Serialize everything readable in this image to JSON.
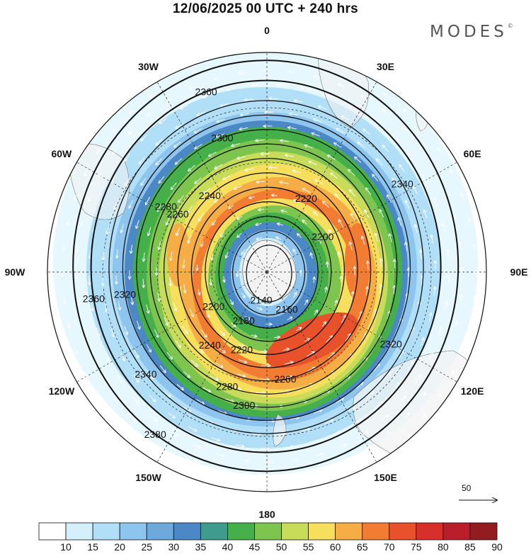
{
  "title": "12/06/2025  00 UTC  + 240 hrs",
  "brand": "MODES",
  "brand_mark": "©",
  "longitude_labels": [
    "0",
    "30E",
    "60E",
    "90E",
    "120E",
    "150E",
    "180",
    "150W",
    "120W",
    "90W",
    "60W",
    "30W"
  ],
  "reference_vector": "50",
  "colorbar": {
    "labels": [
      "10",
      "15",
      "20",
      "25",
      "30",
      "35",
      "40",
      "45",
      "50",
      "55",
      "60",
      "65",
      "70",
      "75",
      "80",
      "85",
      "90"
    ],
    "colors": [
      "#ffffff",
      "#d4f0fd",
      "#b2dff8",
      "#8ec5ee",
      "#6ea9dc",
      "#4c88c6",
      "#3e9b8e",
      "#45b04a",
      "#7ec550",
      "#c8dc5a",
      "#f7df5e",
      "#f6ad46",
      "#f27c32",
      "#e8512a",
      "#d7302b",
      "#b91f2a",
      "#921c1f"
    ]
  },
  "chart_data": {
    "type": "polar-stereographic-map",
    "projection": "south polar stereographic",
    "field_shaded": "wind speed",
    "field_contoured": "geopotential height",
    "contour_levels": [
      {
        "label": "2140",
        "rank": 0
      },
      {
        "label": "2160",
        "rank": 1
      },
      {
        "label": "2180",
        "rank": 2
      },
      {
        "label": "2200",
        "rank": 3
      },
      {
        "label": "2220",
        "rank": 4
      },
      {
        "label": "2240",
        "rank": 5
      },
      {
        "label": "2260",
        "rank": 6
      },
      {
        "label": "2280",
        "rank": 7
      },
      {
        "label": "2300",
        "rank": 8
      },
      {
        "label": "2320",
        "rank": 9
      },
      {
        "label": "2340",
        "rank": 10
      },
      {
        "label": "2360",
        "rank": 11
      },
      {
        "label": "2380",
        "rank": 12
      }
    ],
    "wind_speed_bands": [
      10,
      15,
      20,
      25,
      30,
      35,
      40,
      45,
      50,
      55,
      60,
      65,
      70,
      75,
      80,
      85,
      90
    ],
    "reference_vector_speed": 50
  }
}
